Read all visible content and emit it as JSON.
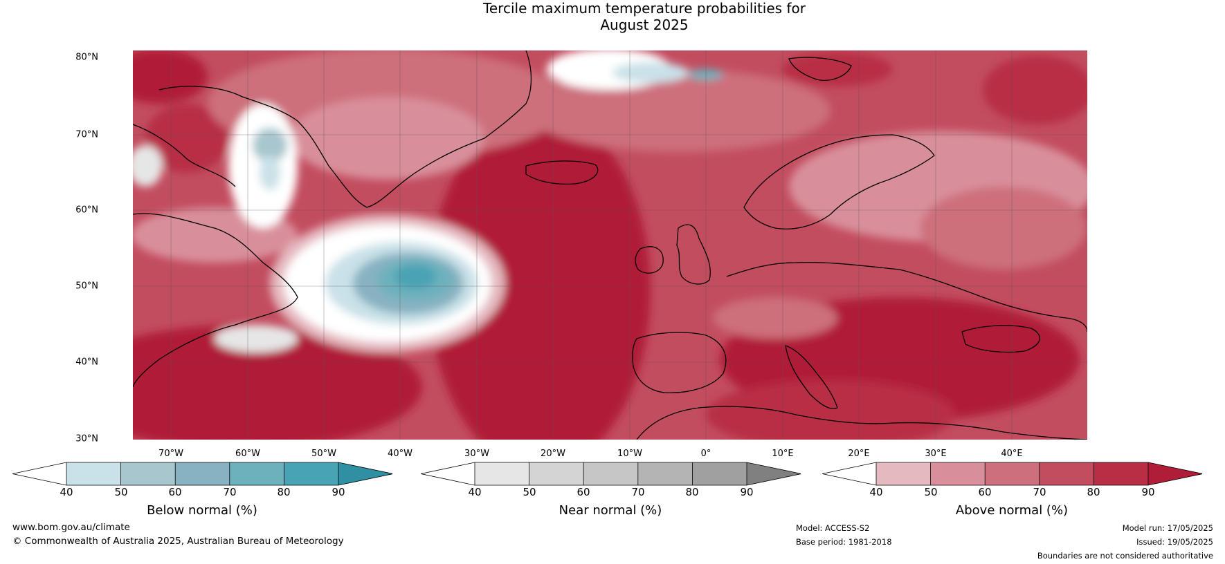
{
  "title_line1": "Tercile maximum temperature probabilities for",
  "title_line2": "August 2025",
  "lat_labels": [
    "80°N",
    "70°N",
    "60°N",
    "50°N",
    "40°N",
    "30°N"
  ],
  "lon_labels": [
    "70°W",
    "60°W",
    "50°W",
    "40°W",
    "30°W",
    "20°W",
    "10°W",
    "0°",
    "10°E",
    "20°E",
    "30°E",
    "40°E"
  ],
  "colorbars": [
    {
      "label": "Below normal (%)",
      "ticks": [
        "40",
        "50",
        "60",
        "70",
        "80",
        "90"
      ],
      "colors": [
        "#ffffff",
        "#c9e1e8",
        "#a7c6cd",
        "#88b2c1",
        "#6db1bd",
        "#48a3b4",
        "#2f8fa3"
      ]
    },
    {
      "label": "Near normal (%)",
      "ticks": [
        "40",
        "50",
        "60",
        "70",
        "80",
        "90"
      ],
      "colors": [
        "#ffffff",
        "#e6e6e6",
        "#d4d4d4",
        "#c6c6c6",
        "#b4b4b4",
        "#a0a0a0",
        "#808080"
      ]
    },
    {
      "label": "Above normal (%)",
      "ticks": [
        "40",
        "50",
        "60",
        "70",
        "80",
        "90"
      ],
      "colors": [
        "#ffffff",
        "#e5b9c0",
        "#d98f9b",
        "#cd6f7c",
        "#c24d5f",
        "#b82e45",
        "#b01d39"
      ]
    }
  ],
  "footer": {
    "website": "www.bom.gov.au/climate",
    "copyright": "© Commonwealth of Australia 2025, Australian Bureau of Meteorology",
    "model": "Model: ACCESS-S2",
    "base_period": "Base period: 1981-2018",
    "model_run": "Model run: 17/05/2025",
    "issued": "Issued: 19/05/2025",
    "disclaimer": "Boundaries are not considered authoritative"
  }
}
